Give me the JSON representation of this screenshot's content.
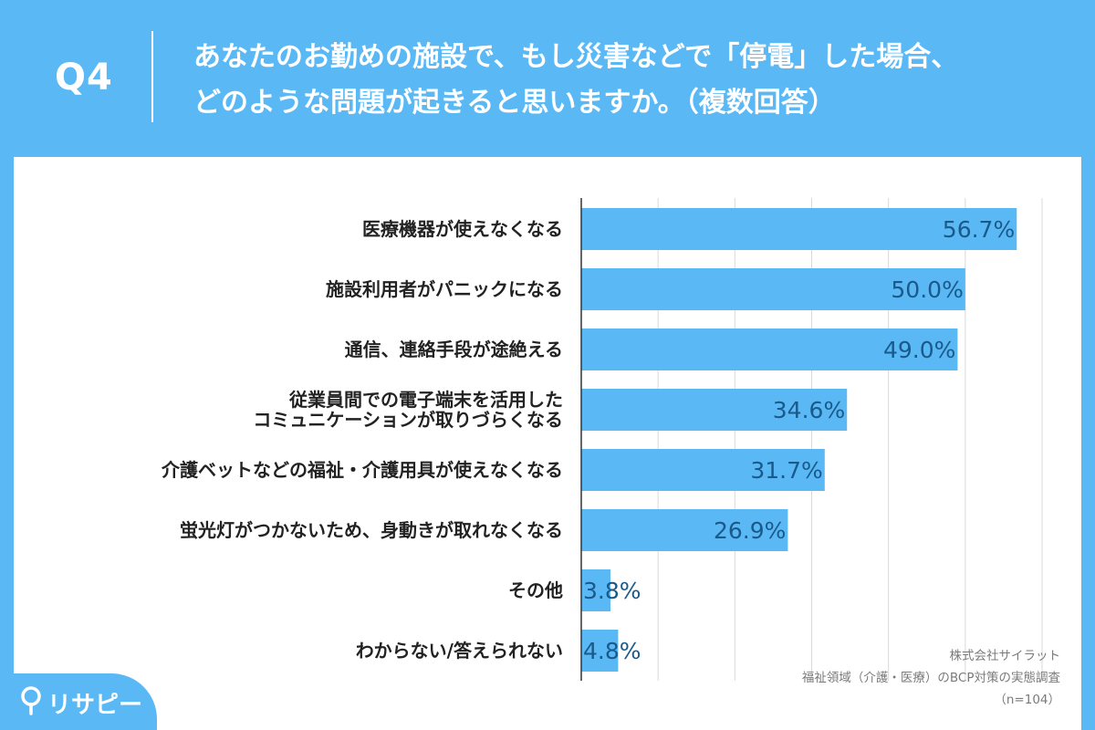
{
  "header": {
    "question_number": "Q4",
    "title_line1": "あなたのお勤めの施設で、もし災害などで「停電」した場合、",
    "title_line2": "どのような問題が起きると思いますか。（複数回答）"
  },
  "credits": {
    "company": "株式会社サイラット",
    "survey": "福祉領域（介護・医療）のBCP対策の実態調査",
    "sample": "（n=104）"
  },
  "logo": {
    "text": "リサピー",
    "icon": "pin-icon"
  },
  "colors": {
    "background": "#5ab8f5",
    "bar": "#5ab8f5",
    "value_text": "#1a5a8a",
    "grid": "#d9d9d9"
  },
  "chart_data": {
    "type": "bar",
    "orientation": "horizontal",
    "categories": [
      [
        "医療機器が使えなくなる"
      ],
      [
        "施設利用者がパニックになる"
      ],
      [
        "通信、連絡手段が途絶える"
      ],
      [
        "従業員間での電子端末を活用した",
        "コミュニケーションが取りづらくなる"
      ],
      [
        "介護ベットなどの福祉・介護用具が使えなくなる"
      ],
      [
        "蛍光灯がつかないため、身動きが取れなくなる"
      ],
      [
        "その他"
      ],
      [
        "わからない/答えられない"
      ]
    ],
    "values": [
      56.7,
      50.0,
      49.0,
      34.6,
      31.7,
      26.9,
      3.8,
      4.8
    ],
    "value_labels": [
      "56.7%",
      "50.0%",
      "49.0%",
      "34.6%",
      "31.7%",
      "26.9%",
      "3.8%",
      "4.8%"
    ],
    "xlim": [
      0,
      60
    ],
    "grid": true,
    "unit": "%"
  }
}
